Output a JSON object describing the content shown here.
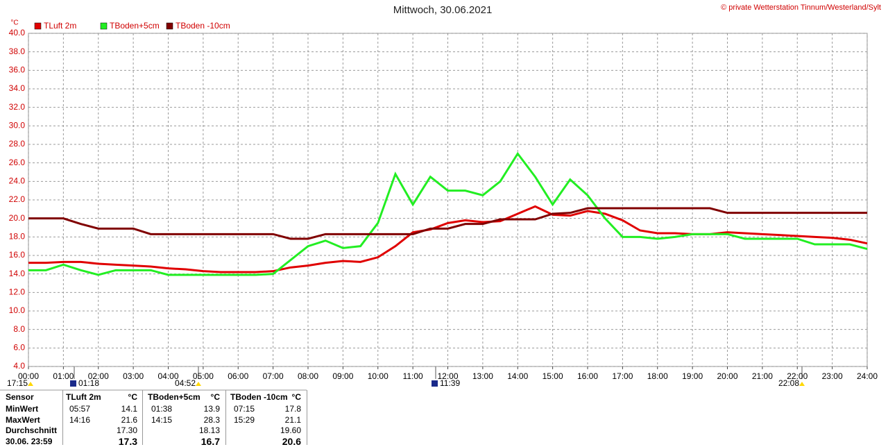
{
  "chart_data": {
    "type": "line",
    "title": "Mittwoch, 30.06.2021",
    "credit": "© private Wetterstation Tinnum/Westerland/Sylt",
    "y_unit": "°C",
    "x": [
      0,
      0.5,
      1,
      1.5,
      2,
      2.5,
      3,
      3.5,
      4,
      4.5,
      5,
      5.5,
      6,
      6.5,
      7,
      7.5,
      8,
      8.5,
      9,
      9.5,
      10,
      10.5,
      11,
      11.5,
      12,
      12.5,
      13,
      13.5,
      14,
      14.5,
      15,
      15.5,
      16,
      16.5,
      17,
      17.5,
      18,
      18.5,
      19,
      19.5,
      20,
      20.5,
      21,
      21.5,
      22,
      22.5,
      23,
      23.5,
      24
    ],
    "series": [
      {
        "name": "TLuft 2m",
        "color": "#e00000",
        "values": [
          15.2,
          15.2,
          15.3,
          15.3,
          15.1,
          15.0,
          14.9,
          14.8,
          14.6,
          14.5,
          14.3,
          14.2,
          14.2,
          14.2,
          14.3,
          14.7,
          14.9,
          15.2,
          15.4,
          15.3,
          15.8,
          17.0,
          18.5,
          18.8,
          19.5,
          19.8,
          19.6,
          19.7,
          20.5,
          21.3,
          20.4,
          20.3,
          20.8,
          20.5,
          19.8,
          18.7,
          18.4,
          18.4,
          18.3,
          18.3,
          18.5,
          18.4,
          18.3,
          18.2,
          18.1,
          18.0,
          17.9,
          17.7,
          17.3
        ]
      },
      {
        "name": "TBoden+5cm",
        "color": "#22ee22",
        "values": [
          14.4,
          14.4,
          15.0,
          14.4,
          13.9,
          14.4,
          14.4,
          14.4,
          13.9,
          13.9,
          13.9,
          13.9,
          13.9,
          13.9,
          14.0,
          15.5,
          17.0,
          17.6,
          16.8,
          17.0,
          19.5,
          24.8,
          21.5,
          24.5,
          23.0,
          23.0,
          22.5,
          24.0,
          27.0,
          24.5,
          21.5,
          24.2,
          22.5,
          20.0,
          18.0,
          18.0,
          17.8,
          18.0,
          18.3,
          18.3,
          18.3,
          17.8,
          17.8,
          17.8,
          17.8,
          17.2,
          17.2,
          17.2,
          16.7
        ]
      },
      {
        "name": "TBoden -10cm",
        "color": "#800000",
        "values": [
          20.0,
          20.0,
          20.0,
          19.4,
          18.9,
          18.9,
          18.9,
          18.3,
          18.3,
          18.3,
          18.3,
          18.3,
          18.3,
          18.3,
          18.3,
          17.8,
          17.8,
          18.3,
          18.3,
          18.3,
          18.3,
          18.3,
          18.3,
          18.9,
          18.9,
          19.4,
          19.4,
          19.9,
          19.9,
          19.9,
          20.5,
          20.6,
          21.1,
          21.1,
          21.1,
          21.1,
          21.1,
          21.1,
          21.1,
          21.1,
          20.6,
          20.6,
          20.6,
          20.6,
          20.6,
          20.6,
          20.6,
          20.6,
          20.6
        ]
      }
    ],
    "xlim": [
      0,
      24
    ],
    "ylim": [
      4,
      40
    ],
    "xticks": [
      {
        "value": 0,
        "label": "00:00"
      },
      {
        "value": 1,
        "label": "01:00"
      },
      {
        "value": 2,
        "label": "02:00"
      },
      {
        "value": 3,
        "label": "03:00"
      },
      {
        "value": 4,
        "label": "04:00"
      },
      {
        "value": 5,
        "label": "05:00"
      },
      {
        "value": 6,
        "label": "06:00"
      },
      {
        "value": 7,
        "label": "07:00"
      },
      {
        "value": 8,
        "label": "08:00"
      },
      {
        "value": 9,
        "label": "09:00"
      },
      {
        "value": 10,
        "label": "10:00"
      },
      {
        "value": 11,
        "label": "11:00"
      },
      {
        "value": 12,
        "label": "12:00"
      },
      {
        "value": 13,
        "label": "13:00"
      },
      {
        "value": 14,
        "label": "14:00"
      },
      {
        "value": 15,
        "label": "15:00"
      },
      {
        "value": 16,
        "label": "16:00"
      },
      {
        "value": 17,
        "label": "17:00"
      },
      {
        "value": 18,
        "label": "18:00"
      },
      {
        "value": 19,
        "label": "19:00"
      },
      {
        "value": 20,
        "label": "20:00"
      },
      {
        "value": 21,
        "label": "21:00"
      },
      {
        "value": 22,
        "label": "22:00"
      },
      {
        "value": 23,
        "label": "23:00"
      },
      {
        "value": 24,
        "label": "24:00"
      }
    ],
    "yticks": [
      {
        "value": 4,
        "label": "4.0"
      },
      {
        "value": 6,
        "label": "6.0"
      },
      {
        "value": 8,
        "label": "8.0"
      },
      {
        "value": 10,
        "label": "10.0"
      },
      {
        "value": 12,
        "label": "12.0"
      },
      {
        "value": 14,
        "label": "14.0"
      },
      {
        "value": 16,
        "label": "16.0"
      },
      {
        "value": 18,
        "label": "18.0"
      },
      {
        "value": 20,
        "label": "20.0"
      },
      {
        "value": 22,
        "label": "22.0"
      },
      {
        "value": 24,
        "label": "24.0"
      },
      {
        "value": 26,
        "label": "26.0"
      },
      {
        "value": 28,
        "label": "28.0"
      },
      {
        "value": 30,
        "label": "30.0"
      },
      {
        "value": 32,
        "label": "32.0"
      },
      {
        "value": 34,
        "label": "34.0"
      },
      {
        "value": 36,
        "label": "36.0"
      },
      {
        "value": 38,
        "label": "38.0"
      },
      {
        "value": 40,
        "label": "40.0"
      }
    ],
    "grid": true,
    "annotations": [
      "17:15",
      "01:18",
      "04:52",
      "11:39",
      "22:08"
    ]
  },
  "table": {
    "rows": [
      [
        "Sensor",
        "TLuft 2m",
        "°C",
        "TBoden+5cm",
        "°C",
        "TBoden -10cm",
        "°C"
      ],
      [
        "MinWert",
        "05:57",
        "14.1",
        "01:38",
        "13.9",
        "07:15",
        "17.8"
      ],
      [
        "MaxWert",
        "14:16",
        "21.6",
        "14:15",
        "28.3",
        "15:29",
        "21.1"
      ],
      [
        "Durchschnitt",
        null,
        "17.30",
        null,
        "18.13",
        null,
        "19.60"
      ],
      [
        "30.06. 23:59",
        null,
        "17.3",
        null,
        "16.7",
        null,
        "20.6"
      ]
    ]
  }
}
